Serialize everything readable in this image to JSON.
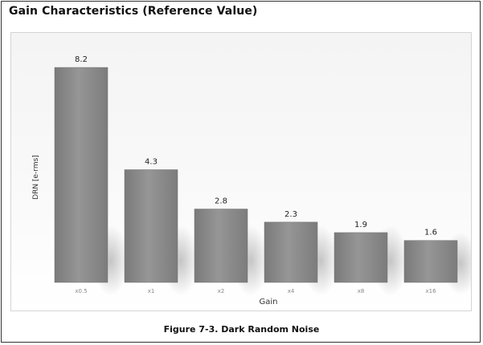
{
  "page": {
    "heading": "Gain Characteristics (Reference Value)",
    "caption": "Figure 7-3.  Dark Random Noise"
  },
  "chart_data": {
    "type": "bar",
    "categories": [
      "x0.5",
      "x1",
      "x2",
      "x4",
      "x8",
      "x16"
    ],
    "values": [
      8.2,
      4.3,
      2.8,
      2.3,
      1.9,
      1.6
    ],
    "data_labels": [
      "8.2",
      "4.3",
      "2.8",
      "2.3",
      "1.9",
      "1.6"
    ],
    "title": "",
    "xlabel": "Gain",
    "ylabel": "DRN [e-rms]",
    "ylim": [
      0,
      8.6
    ],
    "grid": false,
    "legend": "none",
    "bar_color": "#8c8c8c"
  }
}
